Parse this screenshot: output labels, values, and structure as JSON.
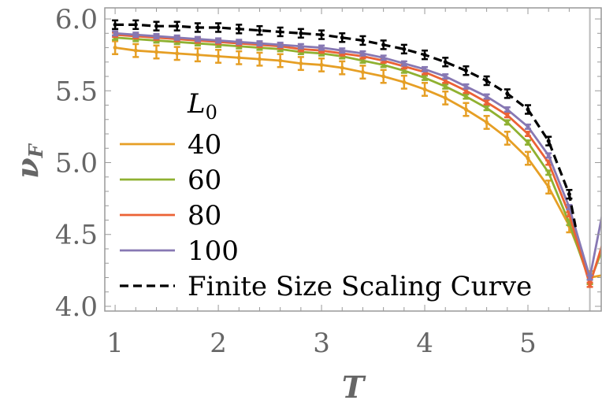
{
  "chart_data": {
    "type": "line",
    "xlabel": "T",
    "ylabel": "ν_F",
    "xlim": [
      0.9,
      5.71
    ],
    "ylim": [
      3.967,
      6.077
    ],
    "x_ticks": [
      "1",
      "2",
      "3",
      "4",
      "5"
    ],
    "y_ticks": [
      "4.0",
      "4.5",
      "5.0",
      "5.5",
      "6.0"
    ],
    "grid": false,
    "legend": {
      "title": "L",
      "title_subscript": "0",
      "placement": "center-left"
    },
    "vertical_line_at": 5.6,
    "x": [
      1.0,
      1.2,
      1.4,
      1.6,
      1.8,
      2.0,
      2.2,
      2.4,
      2.6,
      2.8,
      3.0,
      3.2,
      3.4,
      3.6,
      3.8,
      4.0,
      4.2,
      4.4,
      4.6,
      4.8,
      5.0,
      5.2,
      5.4,
      5.6
    ],
    "series": [
      {
        "name": "40",
        "color": "#E69F25",
        "error": 0.045,
        "values": [
          5.8,
          5.78,
          5.77,
          5.76,
          5.75,
          5.74,
          5.73,
          5.72,
          5.71,
          5.69,
          5.68,
          5.66,
          5.63,
          5.6,
          5.56,
          5.51,
          5.45,
          5.37,
          5.28,
          5.17,
          5.03,
          4.83,
          4.56,
          4.2
        ]
      },
      {
        "name": "60",
        "color": "#8FB131",
        "error": 0.015,
        "values": [
          5.87,
          5.86,
          5.85,
          5.84,
          5.83,
          5.82,
          5.81,
          5.8,
          5.79,
          5.77,
          5.76,
          5.74,
          5.71,
          5.68,
          5.64,
          5.59,
          5.53,
          5.46,
          5.38,
          5.28,
          5.14,
          4.93,
          4.58,
          4.17
        ]
      },
      {
        "name": "80",
        "color": "#EB6235",
        "error": 0.015,
        "values": [
          5.89,
          5.88,
          5.87,
          5.86,
          5.85,
          5.84,
          5.83,
          5.82,
          5.81,
          5.79,
          5.78,
          5.76,
          5.74,
          5.71,
          5.67,
          5.63,
          5.57,
          5.5,
          5.42,
          5.33,
          5.2,
          5.0,
          4.64,
          4.15
        ]
      },
      {
        "name": "100",
        "color": "#8778B3",
        "error": 0.015,
        "values": [
          5.9,
          5.89,
          5.88,
          5.87,
          5.86,
          5.85,
          5.84,
          5.83,
          5.82,
          5.81,
          5.8,
          5.78,
          5.76,
          5.73,
          5.69,
          5.65,
          5.6,
          5.53,
          5.46,
          5.37,
          5.25,
          5.05,
          4.69,
          4.2
        ]
      },
      {
        "name": "Finite Size Scaling Curve",
        "color": "#000000",
        "dashed": true,
        "error": 0.03,
        "values": [
          5.96,
          5.96,
          5.95,
          5.95,
          5.94,
          5.94,
          5.93,
          5.92,
          5.91,
          5.9,
          5.89,
          5.87,
          5.85,
          5.82,
          5.79,
          5.75,
          5.7,
          5.64,
          5.57,
          5.48,
          5.37,
          5.15,
          4.78,
          null
        ]
      }
    ]
  }
}
